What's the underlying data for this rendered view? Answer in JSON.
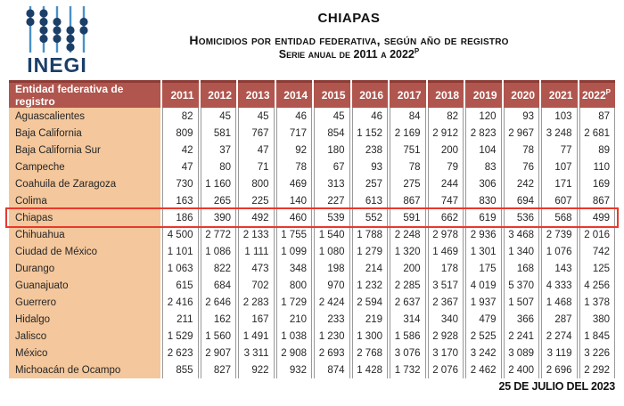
{
  "logo": {
    "text": "INEGI"
  },
  "header": {
    "title": "CHIAPAS",
    "subtitle1": "Homicidios por entidad federativa, según año de registro",
    "subtitle2_prefix": "Serie anual de 2011 a 2022",
    "sup_mark": "P"
  },
  "table": {
    "entity_header": "Entidad federativa de registro",
    "years": [
      "2011",
      "2012",
      "2013",
      "2014",
      "2015",
      "2016",
      "2017",
      "2018",
      "2019",
      "2020",
      "2021",
      "2022"
    ],
    "year_sup_mark": "P",
    "rows": [
      {
        "entity": "Aguascalientes",
        "values": [
          82,
          45,
          45,
          46,
          45,
          46,
          84,
          82,
          120,
          93,
          103,
          87
        ],
        "highlighted": false
      },
      {
        "entity": "Baja California",
        "values": [
          809,
          581,
          767,
          717,
          854,
          1152,
          2169,
          2912,
          2823,
          2967,
          3248,
          2681
        ],
        "highlighted": false
      },
      {
        "entity": "Baja California Sur",
        "values": [
          42,
          37,
          47,
          92,
          180,
          238,
          751,
          200,
          104,
          78,
          77,
          89
        ],
        "highlighted": false
      },
      {
        "entity": "Campeche",
        "values": [
          47,
          80,
          71,
          78,
          67,
          93,
          78,
          79,
          83,
          76,
          107,
          110
        ],
        "highlighted": false
      },
      {
        "entity": "Coahuila de Zaragoza",
        "values": [
          730,
          1160,
          800,
          469,
          313,
          257,
          275,
          244,
          306,
          242,
          171,
          169
        ],
        "highlighted": false
      },
      {
        "entity": "Colima",
        "values": [
          163,
          265,
          225,
          140,
          227,
          613,
          867,
          747,
          830,
          694,
          607,
          867
        ],
        "highlighted": false
      },
      {
        "entity": "Chiapas",
        "values": [
          186,
          390,
          492,
          460,
          539,
          552,
          591,
          662,
          619,
          536,
          568,
          499
        ],
        "highlighted": true
      },
      {
        "entity": "Chihuahua",
        "values": [
          4500,
          2772,
          2133,
          1755,
          1540,
          1788,
          2248,
          2978,
          2936,
          3468,
          2739,
          2016
        ],
        "highlighted": false
      },
      {
        "entity": "Ciudad de México",
        "values": [
          1101,
          1086,
          1111,
          1099,
          1080,
          1279,
          1320,
          1469,
          1301,
          1340,
          1076,
          742
        ],
        "highlighted": false
      },
      {
        "entity": "Durango",
        "values": [
          1063,
          822,
          473,
          348,
          198,
          214,
          200,
          178,
          175,
          168,
          143,
          125
        ],
        "highlighted": false
      },
      {
        "entity": "Guanajuato",
        "values": [
          615,
          684,
          702,
          800,
          970,
          1232,
          2285,
          3517,
          4019,
          5370,
          4333,
          4256
        ],
        "highlighted": false
      },
      {
        "entity": "Guerrero",
        "values": [
          2416,
          2646,
          2283,
          1729,
          2424,
          2594,
          2637,
          2367,
          1937,
          1507,
          1468,
          1378
        ],
        "highlighted": false
      },
      {
        "entity": "Hidalgo",
        "values": [
          211,
          162,
          167,
          210,
          233,
          219,
          314,
          340,
          479,
          366,
          287,
          380
        ],
        "highlighted": false
      },
      {
        "entity": "Jalisco",
        "values": [
          1529,
          1560,
          1491,
          1038,
          1230,
          1300,
          1586,
          2928,
          2525,
          2241,
          2274,
          1845
        ],
        "highlighted": false
      },
      {
        "entity": "México",
        "values": [
          2623,
          2907,
          3311,
          2908,
          2693,
          2768,
          3076,
          3170,
          3242,
          3089,
          3119,
          3226
        ],
        "highlighted": false
      },
      {
        "entity": "Michoacán de Ocampo",
        "values": [
          855,
          827,
          922,
          932,
          874,
          1428,
          1732,
          2076,
          2462,
          2400,
          2696,
          2292
        ],
        "highlighted": false
      }
    ]
  },
  "footer": {
    "date": "25 DE JULIO DEL 2023"
  },
  "colors": {
    "header_bg": "#B0564E",
    "header_top": "#8D3C35",
    "entity_bg": "#F4C79C",
    "cell_border": "#999999",
    "highlight_border": "#E8392B",
    "logo_navy": "#1C3F68",
    "logo_blue": "#4A90C8"
  }
}
